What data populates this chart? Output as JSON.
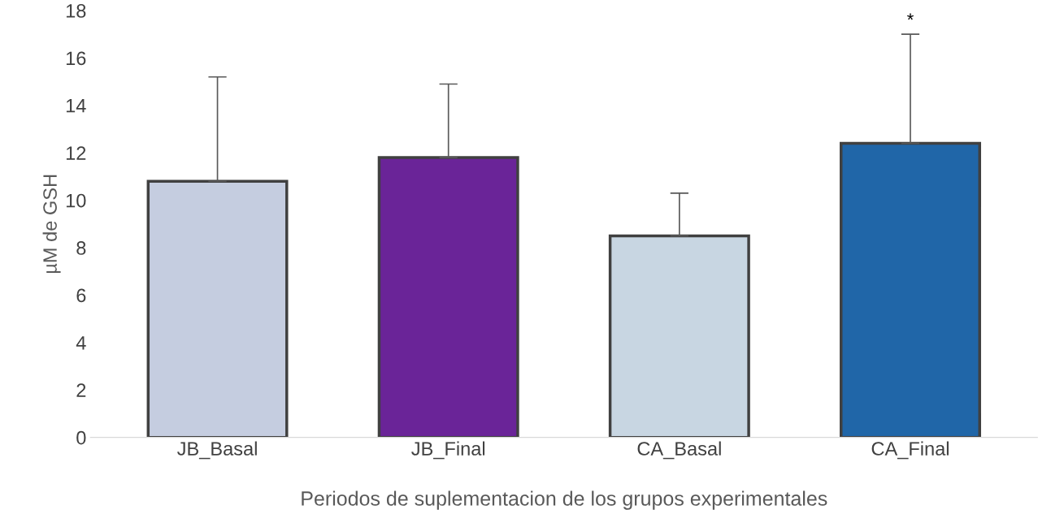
{
  "chart_data": {
    "type": "bar",
    "categories": [
      "JB_Basal",
      "JB_Final",
      "CA_Basal",
      "CA_Final"
    ],
    "values": [
      10.8,
      11.8,
      8.5,
      12.4
    ],
    "colors": [
      "#c5cde0",
      "#6a2498",
      "#c8d6e2",
      "#2066a8"
    ],
    "errors": [
      [
        10.8,
        15.2
      ],
      [
        11.8,
        14.9
      ],
      [
        8.5,
        10.3
      ],
      [
        12.4,
        17.0
      ]
    ],
    "xlabel": "Periodos de suplementacion de los grupos experimentales",
    "ylabel": "µM de GSH",
    "ylim": [
      0,
      18
    ],
    "yticks": [
      0,
      2,
      4,
      6,
      8,
      10,
      12,
      14,
      16,
      18
    ],
    "annotations": [
      "*"
    ],
    "grid": false,
    "legend": false
  }
}
